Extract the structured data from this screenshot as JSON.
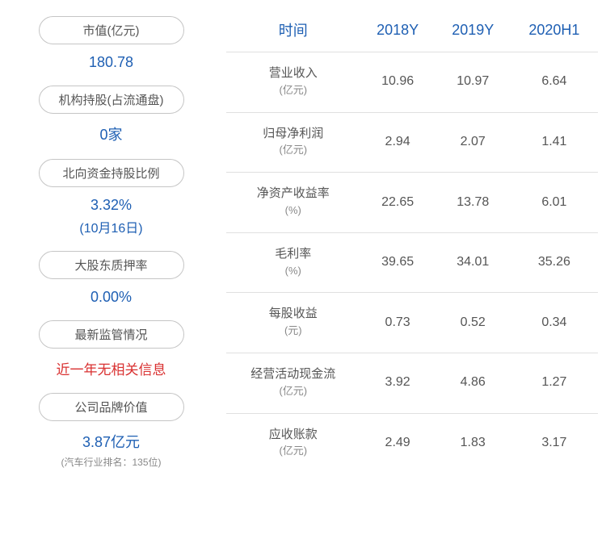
{
  "left_panel": {
    "items": [
      {
        "label": "市值(亿元)",
        "value": "180.78",
        "value_color": "#1e5fb3"
      },
      {
        "label": "机构持股(占流通盘)",
        "value": "0家",
        "value_color": "#1e5fb3"
      },
      {
        "label": "北向资金持股比例",
        "value": "3.32%",
        "sub": "(10月16日)",
        "value_color": "#1e5fb3"
      },
      {
        "label": "大股东质押率",
        "value": "0.00%",
        "value_color": "#1e5fb3"
      },
      {
        "label": "最新监管情况",
        "value": "近一年无相关信息",
        "value_color": "#d93030"
      },
      {
        "label": "公司品牌价值",
        "value": "3.87亿元",
        "note": "(汽车行业排名：135位)",
        "value_color": "#1e5fb3"
      }
    ]
  },
  "table": {
    "headers": [
      "时间",
      "2018Y",
      "2019Y",
      "2020H1"
    ],
    "rows": [
      {
        "metric": "营业收入",
        "unit": "(亿元)",
        "v1": "10.96",
        "v2": "10.97",
        "v3": "6.64"
      },
      {
        "metric": "归母净利润",
        "unit": "(亿元)",
        "v1": "2.94",
        "v2": "2.07",
        "v3": "1.41"
      },
      {
        "metric": "净资产收益率",
        "unit": "(%)",
        "v1": "22.65",
        "v2": "13.78",
        "v3": "6.01"
      },
      {
        "metric": "毛利率",
        "unit": "(%)",
        "v1": "39.65",
        "v2": "34.01",
        "v3": "35.26"
      },
      {
        "metric": "每股收益",
        "unit": "(元)",
        "v1": "0.73",
        "v2": "0.52",
        "v3": "0.34"
      },
      {
        "metric": "经营活动现金流",
        "unit": "(亿元)",
        "v1": "3.92",
        "v2": "4.86",
        "v3": "1.27"
      },
      {
        "metric": "应收账款",
        "unit": "(亿元)",
        "v1": "2.49",
        "v2": "1.83",
        "v3": "3.17"
      }
    ]
  },
  "colors": {
    "header_text": "#1e5fb3",
    "body_text": "#555555",
    "border": "#e0e0e0",
    "pill_border": "#c5c5c5",
    "red_text": "#d93030",
    "note_text": "#888888"
  }
}
